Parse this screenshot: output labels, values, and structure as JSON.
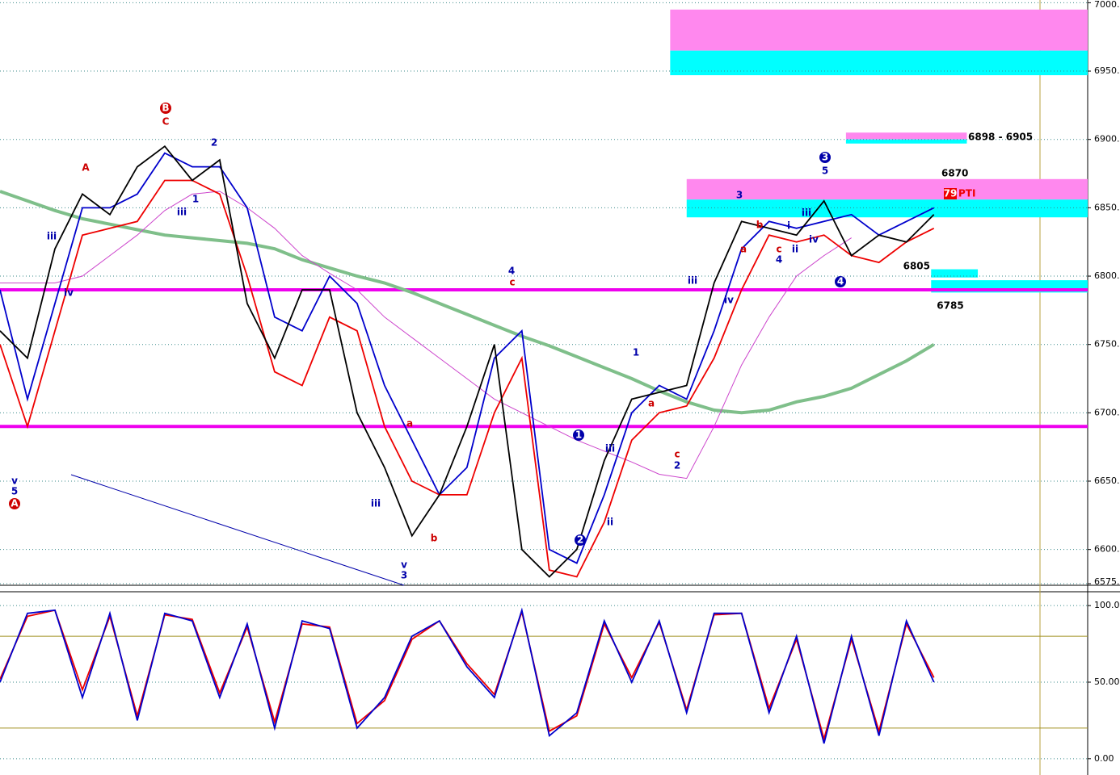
{
  "chart_data": [
    {
      "type": "line",
      "x": [
        0,
        1,
        2,
        3,
        4,
        5,
        6,
        7,
        8,
        9,
        10,
        11,
        12,
        13,
        14,
        15,
        16,
        17,
        18,
        19,
        20,
        21,
        22,
        23,
        24,
        25,
        26,
        27,
        28,
        29,
        30,
        31,
        32,
        33,
        34
      ],
      "xlim": [
        0,
        39.6
      ],
      "ylim": [
        6575,
        7002
      ],
      "yticks": [
        {
          "value": 7000,
          "label": "7000."
        },
        {
          "value": 6950,
          "label": "6950."
        },
        {
          "value": 6900,
          "label": "6900."
        },
        {
          "value": 6850,
          "label": "6850."
        },
        {
          "value": 6800,
          "label": "6800."
        },
        {
          "value": 6750,
          "label": "6750."
        },
        {
          "value": 6700,
          "label": "6700."
        },
        {
          "value": 6650,
          "label": "6650."
        },
        {
          "value": 6600,
          "label": "6600."
        },
        {
          "value": 6575,
          "label": "6575."
        }
      ],
      "grid": true,
      "series": [
        {
          "color": "#7fbf8a",
          "values": [
            6862,
            6855,
            6848,
            6842,
            6838,
            6834,
            6830,
            6828,
            6826,
            6824,
            6820,
            6812,
            6806,
            6800,
            6795,
            6788,
            6780,
            6772,
            6764,
            6756,
            6749,
            6741,
            6733,
            6725,
            6716,
            6708,
            6702,
            6700,
            6702,
            6708,
            6712,
            6718,
            6728,
            6738,
            6750
          ]
        },
        {
          "color": "#cc44cc",
          "values": [
            6795,
            6795,
            6795,
            6800,
            6815,
            6830,
            6848,
            6860,
            6862,
            6850,
            6835,
            6815,
            6802,
            6790,
            6770,
            6755,
            6740,
            6725,
            6710,
            6700,
            6690,
            6680,
            6672,
            6664,
            6655,
            6652,
            6690,
            6735,
            6770,
            6800,
            6815,
            6828,
            null,
            null,
            null
          ]
        },
        {
          "color": "#0000cc",
          "values": [
            6790,
            6710,
            6780,
            6850,
            6850,
            6860,
            6890,
            6880,
            6880,
            6850,
            6770,
            6760,
            6800,
            6780,
            6720,
            6680,
            6640,
            6660,
            6740,
            6760,
            6600,
            6590,
            6640,
            6700,
            6720,
            6710,
            6760,
            6820,
            6840,
            6835,
            6840,
            6845,
            6830,
            6840,
            6850
          ]
        },
        {
          "color": "#ee0000",
          "values": [
            6750,
            6690,
            6760,
            6830,
            6835,
            6840,
            6870,
            6870,
            6860,
            6800,
            6730,
            6720,
            6770,
            6760,
            6690,
            6650,
            6640,
            6640,
            6700,
            6740,
            6585,
            6580,
            6620,
            6680,
            6700,
            6705,
            6740,
            6790,
            6830,
            6825,
            6830,
            6815,
            6810,
            6825,
            6835
          ]
        },
        {
          "color": "#000000",
          "values": [
            6760,
            6740,
            6820,
            6860,
            6845,
            6880,
            6895,
            6870,
            6885,
            6780,
            6740,
            6790,
            6790,
            6700,
            6660,
            6610,
            6640,
            6690,
            6750,
            6600,
            6580,
            6600,
            6665,
            6710,
            6715,
            6720,
            6795,
            6840,
            6835,
            6830,
            6855,
            6815,
            6830,
            6825,
            6845
          ]
        }
      ],
      "hlines": [
        6790,
        6690
      ],
      "zones": [
        {
          "x0": 24.4,
          "x1": 39.6,
          "low": 6965,
          "high": 6995,
          "color": "#ff88ee"
        },
        {
          "x0": 24.4,
          "x1": 39.6,
          "low": 6947,
          "high": 6965,
          "color": "#00ffff"
        },
        {
          "x0": 25,
          "x1": 39.6,
          "low": 6856,
          "high": 6871,
          "color": "#ff88ee"
        },
        {
          "x0": 25,
          "x1": 39.6,
          "low": 6843,
          "high": 6856,
          "color": "#00ffff"
        },
        {
          "x0": 30.8,
          "x1": 35.2,
          "low": 6900,
          "high": 6905,
          "color": "#ff88ee"
        },
        {
          "x0": 30.8,
          "x1": 35.2,
          "low": 6897,
          "high": 6900,
          "color": "#00ffff"
        },
        {
          "x0": 33.9,
          "x1": 35.6,
          "low": 6799,
          "high": 6805,
          "color": "#00ffff"
        },
        {
          "x0": 33.9,
          "x1": 39.6,
          "low": 6788,
          "high": 6797,
          "color": "#00ffff"
        }
      ],
      "annotations": [
        "B",
        "C",
        "A",
        "A",
        "v",
        "5",
        "iii",
        "iv",
        "2",
        "1",
        "iii",
        "4",
        "c",
        "1",
        "2",
        "3",
        "4",
        "5",
        "3",
        "1",
        "c",
        "2",
        "v",
        "3",
        "iii",
        "b",
        "a",
        "a",
        "iii",
        "ii",
        "iv",
        "iii",
        "a",
        "b",
        "c",
        "4",
        "i",
        "ii",
        "iii",
        "iv"
      ],
      "price_labels": [
        "6898 - 6905",
        "6870",
        "79",
        "PTI",
        "6805",
        "6785"
      ]
    },
    {
      "type": "line",
      "x": [
        0,
        1,
        2,
        3,
        4,
        5,
        6,
        7,
        8,
        9,
        10,
        11,
        12,
        13,
        14,
        15,
        16,
        17,
        18,
        19,
        20,
        21,
        22,
        23,
        24,
        25,
        26,
        27,
        28,
        29,
        30,
        31,
        32,
        33,
        34
      ],
      "xlim": [
        0,
        39.6
      ],
      "ylim": [
        -8,
        108
      ],
      "yticks": [
        {
          "value": 100,
          "label": "100.00"
        },
        {
          "value": 50,
          "label": "50.00"
        },
        {
          "value": 0,
          "label": "0.00"
        }
      ],
      "grid": true,
      "levels": [
        80,
        20
      ],
      "series": [
        {
          "color": "#ee0000",
          "values": [
            52,
            93,
            97,
            45,
            93,
            28,
            94,
            91,
            43,
            86,
            24,
            88,
            86,
            23,
            38,
            78,
            90,
            62,
            42,
            96,
            18,
            28,
            88,
            53,
            89,
            32,
            94,
            95,
            33,
            78,
            13,
            78,
            18,
            88,
            53
          ]
        },
        {
          "color": "#0000cc",
          "values": [
            50,
            95,
            97,
            40,
            95,
            25,
            95,
            90,
            40,
            88,
            20,
            90,
            85,
            20,
            40,
            80,
            90,
            60,
            40,
            97,
            15,
            30,
            90,
            50,
            90,
            30,
            95,
            95,
            30,
            80,
            10,
            80,
            15,
            90,
            50
          ]
        }
      ]
    }
  ]
}
